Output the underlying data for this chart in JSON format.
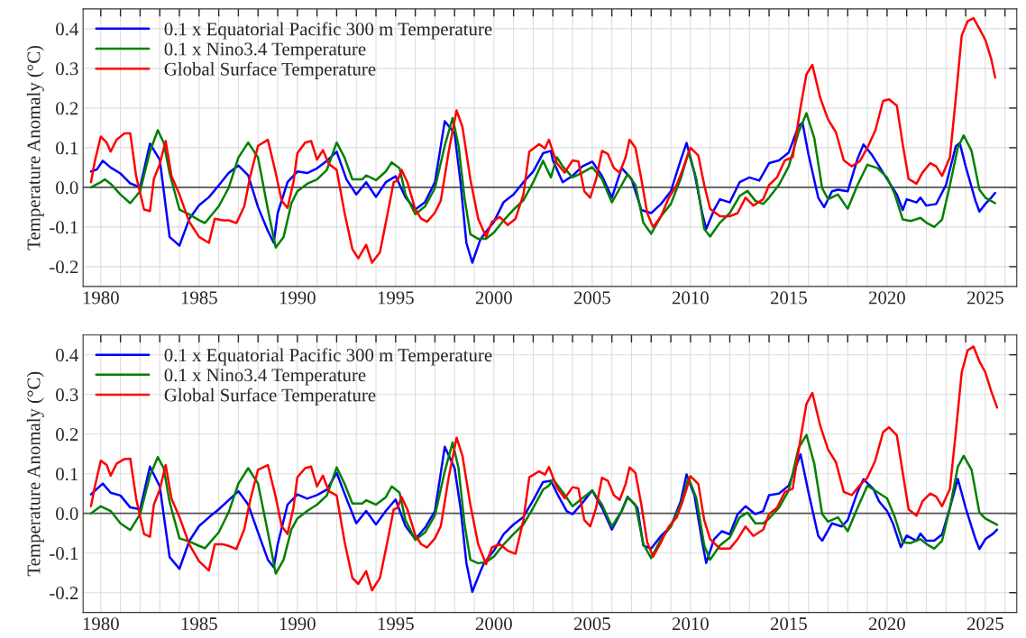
{
  "chart_data": [
    {
      "type": "line",
      "ylabel": "Temperature Anomaly (°C)",
      "xlim": [
        1979.1,
        2026.6
      ],
      "ylim": [
        -0.25,
        0.45
      ],
      "yticks": [
        -0.2,
        -0.1,
        {
          "value": 0,
          "label": "0.0"
        },
        0.1,
        0.2,
        0.3,
        0.4
      ],
      "xticks": [
        1980,
        {
          "value": 1981,
          "label": null
        },
        {
          "value": 1982,
          "label": null
        },
        {
          "value": 1983,
          "label": null
        },
        {
          "value": 1984,
          "label": null
        },
        1985,
        {
          "value": 1986,
          "label": null
        },
        {
          "value": 1987,
          "label": null
        },
        {
          "value": 1988,
          "label": null
        },
        {
          "value": 1989,
          "label": null
        },
        1990,
        {
          "value": 1991,
          "label": null
        },
        {
          "value": 1992,
          "label": null
        },
        {
          "value": 1993,
          "label": null
        },
        {
          "value": 1994,
          "label": null
        },
        1995,
        {
          "value": 1996,
          "label": null
        },
        {
          "value": 1997,
          "label": null
        },
        {
          "value": 1998,
          "label": null
        },
        {
          "value": 1999,
          "label": null
        },
        2000,
        {
          "value": 2001,
          "label": null
        },
        {
          "value": 2002,
          "label": null
        },
        {
          "value": 2003,
          "label": null
        },
        {
          "value": 2004,
          "label": null
        },
        2005,
        {
          "value": 2006,
          "label": null
        },
        {
          "value": 2007,
          "label": null
        },
        {
          "value": 2008,
          "label": null
        },
        {
          "value": 2009,
          "label": null
        },
        2010,
        {
          "value": 2011,
          "label": null
        },
        {
          "value": 2012,
          "label": null
        },
        {
          "value": 2013,
          "label": null
        },
        {
          "value": 2014,
          "label": null
        },
        2015,
        {
          "value": 2016,
          "label": null
        },
        {
          "value": 2017,
          "label": null
        },
        {
          "value": 2018,
          "label": null
        },
        {
          "value": 2019,
          "label": null
        },
        2020,
        {
          "value": 2021,
          "label": null
        },
        {
          "value": 2022,
          "label": null
        },
        {
          "value": 2023,
          "label": null
        },
        {
          "value": 2024,
          "label": null
        },
        2025,
        {
          "value": 2026,
          "label": null
        }
      ],
      "grid": true,
      "legend": "top left",
      "ref_lines": [
        {
          "axis": "y",
          "value": 0,
          "color": "#555555"
        }
      ],
      "series": [
        {
          "name": "0.1 x Equatorial Pacific 300 m Temperature",
          "color": "#0000ff",
          "x": [
            1979.5,
            1979.8,
            1980.1,
            1980.5,
            1981,
            1981.3,
            1981.5,
            1982,
            1982.5,
            1983,
            1983.5,
            1984,
            1984.5,
            1985,
            1985.5,
            1986,
            1986.5,
            1987,
            1987.5,
            1988,
            1988.5,
            1988.8,
            1989,
            1989.5,
            1990,
            1990.5,
            1991,
            1991.5,
            1992,
            1992.5,
            1993,
            1993.5,
            1994,
            1994.5,
            1995,
            1995.5,
            1996,
            1996.5,
            1997,
            1997.5,
            1998,
            1998.3,
            1998.6,
            1998.9,
            1999.3,
            1999.5,
            2000,
            2000.5,
            2001,
            2001.5,
            2002,
            2002.5,
            2002.9,
            2003,
            2003.5,
            2004,
            2004.5,
            2005,
            2005.5,
            2006,
            2006.5,
            2007,
            2007.5,
            2008,
            2008.5,
            2009,
            2009.5,
            2009.8,
            2010.2,
            2010.6,
            2010.8,
            2011.2,
            2011.5,
            2012,
            2012.5,
            2013,
            2013.5,
            2014,
            2014.5,
            2015,
            2015.5,
            2015.7,
            2016,
            2016.5,
            2016.8,
            2017.2,
            2017.5,
            2018,
            2018.5,
            2018.8,
            2019.2,
            2019.6,
            2020,
            2020.5,
            2020.8,
            2021,
            2021.5,
            2021.7,
            2022,
            2022.5,
            2023,
            2023.5,
            2023.7,
            2024,
            2024.5,
            2024.7,
            2025,
            2025.3,
            2025.5
          ],
          "values": [
            0.04,
            0.045,
            0.067,
            0.05,
            0.035,
            0.02,
            0.01,
            0.0,
            0.11,
            0.07,
            -0.125,
            -0.147,
            -0.08,
            -0.045,
            -0.025,
            0.005,
            0.036,
            0.055,
            0.03,
            -0.05,
            -0.11,
            -0.14,
            -0.065,
            0.013,
            0.04,
            0.036,
            0.048,
            0.067,
            0.09,
            0.02,
            -0.018,
            0.013,
            -0.024,
            0.013,
            0.028,
            -0.025,
            -0.056,
            -0.037,
            0.013,
            0.167,
            0.136,
            0.013,
            -0.14,
            -0.19,
            -0.133,
            -0.118,
            -0.087,
            -0.037,
            -0.018,
            0.013,
            0.04,
            0.086,
            0.092,
            0.068,
            0.013,
            0.029,
            0.053,
            0.065,
            0.029,
            -0.026,
            0.049,
            0.021,
            -0.057,
            -0.065,
            -0.042,
            -0.01,
            0.068,
            0.112,
            0.037,
            -0.065,
            -0.105,
            -0.057,
            -0.03,
            -0.038,
            0.013,
            0.025,
            0.017,
            0.061,
            0.068,
            0.088,
            0.155,
            0.163,
            0.084,
            -0.026,
            -0.05,
            -0.01,
            -0.006,
            -0.01,
            0.072,
            0.108,
            0.084,
            0.053,
            0.021,
            -0.018,
            -0.057,
            -0.03,
            -0.038,
            -0.026,
            -0.046,
            -0.042,
            0.006,
            0.104,
            0.112,
            0.053,
            -0.034,
            -0.061,
            -0.042,
            -0.026,
            -0.014
          ]
        },
        {
          "name": "0.1 x Nino3.4 Temperature",
          "color": "#008000",
          "x": [
            1979.5,
            1980,
            1980.2,
            1980.5,
            1981,
            1981.5,
            1982,
            1982.5,
            1982.9,
            1983.2,
            1983.5,
            1984,
            1984.5,
            1985,
            1985.3,
            1985.6,
            1986,
            1986.5,
            1987,
            1987.5,
            1988,
            1988.5,
            1988.9,
            1989.3,
            1989.7,
            1990,
            1990.5,
            1991,
            1991.5,
            1992,
            1992.4,
            1992.8,
            1993.3,
            1993.5,
            1994,
            1994.5,
            1994.8,
            1995.2,
            1995.5,
            1996,
            1996.5,
            1997,
            1997.5,
            1997.9,
            1998.2,
            1998.5,
            1998.8,
            1999.2,
            1999.6,
            2000,
            2000.5,
            2001,
            2001.5,
            2002,
            2002.5,
            2002.9,
            2003.2,
            2003.5,
            2004,
            2004.5,
            2005,
            2005.5,
            2006,
            2006.5,
            2006.8,
            2007.2,
            2007.6,
            2008,
            2008.5,
            2009,
            2009.5,
            2009.9,
            2010.3,
            2010.7,
            2011,
            2011.5,
            2012,
            2012.5,
            2012.9,
            2013.3,
            2013.7,
            2014,
            2014.5,
            2015,
            2015.5,
            2015.9,
            2016.3,
            2016.7,
            2017,
            2017.5,
            2018,
            2018.5,
            2019,
            2019.5,
            2020,
            2020.4,
            2020.8,
            2021.2,
            2021.7,
            2022,
            2022.4,
            2022.8,
            2023.2,
            2023.6,
            2023.9,
            2024.3,
            2024.7,
            2025,
            2025.5
          ],
          "values": [
            0.0,
            0.013,
            0.02,
            0.009,
            -0.018,
            -0.04,
            -0.01,
            0.09,
            0.144,
            0.113,
            0.036,
            -0.056,
            -0.068,
            -0.083,
            -0.09,
            -0.072,
            -0.048,
            -0.002,
            0.075,
            0.113,
            0.075,
            -0.056,
            -0.152,
            -0.125,
            -0.04,
            -0.01,
            0.009,
            0.02,
            0.044,
            0.113,
            0.075,
            0.02,
            0.02,
            0.03,
            0.018,
            0.04,
            0.063,
            0.048,
            -0.018,
            -0.068,
            -0.048,
            -0.002,
            0.105,
            0.175,
            0.105,
            -0.025,
            -0.118,
            -0.13,
            -0.13,
            -0.114,
            -0.083,
            -0.056,
            -0.033,
            0.013,
            0.067,
            0.025,
            0.076,
            0.053,
            0.025,
            0.037,
            0.051,
            0.021,
            -0.038,
            0.006,
            0.033,
            0.006,
            -0.089,
            -0.117,
            -0.073,
            -0.042,
            0.021,
            0.088,
            0.021,
            -0.105,
            -0.124,
            -0.089,
            -0.065,
            -0.022,
            -0.009,
            -0.034,
            -0.042,
            -0.026,
            0.006,
            0.053,
            0.139,
            0.187,
            0.124,
            -0.002,
            -0.03,
            -0.018,
            -0.054,
            0.006,
            0.057,
            0.049,
            0.025,
            -0.018,
            -0.081,
            -0.085,
            -0.077,
            -0.089,
            -0.1,
            -0.081,
            0.006,
            0.1,
            0.131,
            0.092,
            -0.006,
            -0.026,
            -0.04
          ]
        },
        {
          "name": "Global Surface Temperature",
          "color": "#ff0000",
          "x": [
            1979.5,
            1979.7,
            1980,
            1980.3,
            1980.5,
            1980.8,
            1981.2,
            1981.5,
            1981.8,
            1982.2,
            1982.5,
            1982.7,
            1983,
            1983.3,
            1983.6,
            1984,
            1984.5,
            1985,
            1985.5,
            1985.8,
            1986.2,
            1986.5,
            1986.9,
            1987.3,
            1987.6,
            1988,
            1988.5,
            1988.9,
            1989.2,
            1989.5,
            1989.8,
            1990,
            1990.4,
            1990.7,
            1991,
            1991.3,
            1991.6,
            1992,
            1992.4,
            1992.8,
            1993.1,
            1993.5,
            1993.8,
            1994.2,
            1994.6,
            1994.9,
            1995.1,
            1995.3,
            1995.6,
            1996,
            1996.3,
            1996.6,
            1997,
            1997.3,
            1997.7,
            1998.1,
            1998.4,
            1998.8,
            1999.2,
            1999.6,
            1999.9,
            2000.3,
            2000.7,
            2001.1,
            2001.5,
            2001.8,
            2002.3,
            2002.6,
            2002.8,
            2003.2,
            2003.6,
            2004,
            2004.3,
            2004.6,
            2004.9,
            2005.2,
            2005.5,
            2005.8,
            2006.1,
            2006.4,
            2006.7,
            2006.9,
            2007.2,
            2007.5,
            2007.8,
            2008.1,
            2008.5,
            2008.9,
            2009.3,
            2009.6,
            2010,
            2010.4,
            2010.7,
            2011,
            2011.5,
            2012,
            2012.4,
            2012.8,
            2013.2,
            2013.7,
            2014,
            2014.4,
            2014.8,
            2015.2,
            2015.6,
            2015.9,
            2016.2,
            2016.6,
            2017,
            2017.4,
            2017.8,
            2018.2,
            2018.6,
            2019,
            2019.4,
            2019.8,
            2020.1,
            2020.5,
            2020.8,
            2021.1,
            2021.5,
            2021.8,
            2022.2,
            2022.5,
            2022.8,
            2023.2,
            2023.5,
            2023.8,
            2024.1,
            2024.4,
            2024.7,
            2025,
            2025.3,
            2025.5
          ],
          "values": [
            0.013,
            0.067,
            0.128,
            0.113,
            0.09,
            0.12,
            0.136,
            0.136,
            0.028,
            -0.056,
            -0.06,
            0.021,
            0.059,
            0.117,
            0.028,
            -0.018,
            -0.087,
            -0.125,
            -0.14,
            -0.079,
            -0.083,
            -0.083,
            -0.09,
            -0.048,
            0.028,
            0.105,
            0.12,
            0.036,
            -0.033,
            -0.052,
            0.013,
            0.086,
            0.113,
            0.117,
            0.07,
            0.094,
            0.059,
            0.044,
            -0.064,
            -0.156,
            -0.179,
            -0.145,
            -0.19,
            -0.164,
            -0.064,
            0.013,
            0.017,
            0.044,
            0.013,
            -0.056,
            -0.079,
            -0.087,
            -0.064,
            -0.033,
            0.09,
            0.194,
            0.152,
            0.021,
            -0.079,
            -0.125,
            -0.087,
            -0.075,
            -0.095,
            -0.079,
            -0.018,
            0.09,
            0.109,
            0.098,
            0.12,
            0.061,
            0.037,
            0.068,
            0.065,
            -0.01,
            -0.026,
            0.021,
            0.092,
            0.084,
            0.049,
            0.037,
            0.076,
            0.12,
            0.1,
            0.021,
            -0.065,
            -0.1,
            -0.073,
            -0.026,
            0.006,
            0.045,
            0.1,
            0.08,
            0.006,
            -0.054,
            -0.073,
            -0.073,
            -0.065,
            -0.026,
            -0.046,
            -0.03,
            0.006,
            0.025,
            0.068,
            0.076,
            0.202,
            0.285,
            0.309,
            0.226,
            0.171,
            0.139,
            0.068,
            0.053,
            0.065,
            0.1,
            0.143,
            0.218,
            0.222,
            0.206,
            0.108,
            0.021,
            0.009,
            0.037,
            0.061,
            0.053,
            0.029,
            0.076,
            0.226,
            0.383,
            0.419,
            0.427,
            0.4,
            0.372,
            0.324,
            0.277
          ]
        }
      ]
    },
    {
      "type": "line",
      "ylabel": "Temperature Anomaly (°C)",
      "xlim": [
        1979.1,
        2026.6
      ],
      "ylim": [
        -0.25,
        0.45
      ],
      "yticks": [
        -0.2,
        -0.1,
        {
          "value": 0,
          "label": "0.0"
        },
        0.1,
        0.2,
        0.3,
        0.4
      ],
      "xticks": [
        1980,
        {
          "value": 1981,
          "label": null
        },
        {
          "value": 1982,
          "label": null
        },
        {
          "value": 1983,
          "label": null
        },
        {
          "value": 1984,
          "label": null
        },
        1985,
        {
          "value": 1986,
          "label": null
        },
        {
          "value": 1987,
          "label": null
        },
        {
          "value": 1988,
          "label": null
        },
        {
          "value": 1989,
          "label": null
        },
        1990,
        {
          "value": 1991,
          "label": null
        },
        {
          "value": 1992,
          "label": null
        },
        {
          "value": 1993,
          "label": null
        },
        {
          "value": 1994,
          "label": null
        },
        1995,
        {
          "value": 1996,
          "label": null
        },
        {
          "value": 1997,
          "label": null
        },
        {
          "value": 1998,
          "label": null
        },
        {
          "value": 1999,
          "label": null
        },
        2000,
        {
          "value": 2001,
          "label": null
        },
        {
          "value": 2002,
          "label": null
        },
        {
          "value": 2003,
          "label": null
        },
        {
          "value": 2004,
          "label": null
        },
        2005,
        {
          "value": 2006,
          "label": null
        },
        {
          "value": 2007,
          "label": null
        },
        {
          "value": 2008,
          "label": null
        },
        {
          "value": 2009,
          "label": null
        },
        2010,
        {
          "value": 2011,
          "label": null
        },
        {
          "value": 2012,
          "label": null
        },
        {
          "value": 2013,
          "label": null
        },
        {
          "value": 2014,
          "label": null
        },
        2015,
        {
          "value": 2016,
          "label": null
        },
        {
          "value": 2017,
          "label": null
        },
        {
          "value": 2018,
          "label": null
        },
        {
          "value": 2019,
          "label": null
        },
        2020,
        {
          "value": 2021,
          "label": null
        },
        {
          "value": 2022,
          "label": null
        },
        {
          "value": 2023,
          "label": null
        },
        {
          "value": 2024,
          "label": null
        },
        2025,
        {
          "value": 2026,
          "label": null
        }
      ],
      "grid": true,
      "legend": "top left",
      "ref_lines": [
        {
          "axis": "y",
          "value": 0,
          "color": "#555555"
        }
      ],
      "series": [
        {
          "name": "0.1 x Equatorial Pacific 300 m Temperature",
          "color": "#0000ff",
          "x": [
            1979.5,
            1980.1,
            1980.5,
            1981,
            1981.5,
            1982,
            1982.5,
            1983,
            1983.5,
            1984,
            1984.5,
            1985,
            1985.5,
            1986,
            1986.5,
            1987,
            1987.5,
            1988,
            1988.5,
            1988.8,
            1989,
            1989.5,
            1990,
            1990.5,
            1991,
            1991.5,
            1992,
            1992.5,
            1993,
            1993.5,
            1994,
            1994.5,
            1995,
            1995.5,
            1996,
            1996.5,
            1997,
            1997.5,
            1998,
            1998.3,
            1998.6,
            1998.9,
            1999.3,
            1999.5,
            2000,
            2000.5,
            2001,
            2001.5,
            2002,
            2002.5,
            2002.9,
            2003.3,
            2003.7,
            2004,
            2004.5,
            2005,
            2005.5,
            2006,
            2006.5,
            2006.8,
            2007.3,
            2007.6,
            2008,
            2008.5,
            2009,
            2009.5,
            2009.8,
            2010.2,
            2010.6,
            2010.8,
            2011.2,
            2011.6,
            2012,
            2012.4,
            2012.8,
            2013.3,
            2013.7,
            2014,
            2014.5,
            2015,
            2015.3,
            2015.6,
            2016,
            2016.5,
            2016.7,
            2017.2,
            2017.7,
            2018,
            2018.5,
            2018.8,
            2019.3,
            2019.6,
            2020,
            2020.3,
            2020.7,
            2021,
            2021.5,
            2021.7,
            2022,
            2022.4,
            2022.8,
            2023.2,
            2023.6,
            2024,
            2024.5,
            2024.7,
            2025,
            2025.4,
            2025.6
          ],
          "values": [
            0.048,
            0.075,
            0.052,
            0.045,
            0.015,
            0.01,
            0.118,
            0.068,
            -0.11,
            -0.14,
            -0.07,
            -0.032,
            -0.01,
            0.01,
            0.033,
            0.056,
            0.022,
            -0.048,
            -0.117,
            -0.136,
            -0.078,
            0.022,
            0.048,
            0.037,
            0.046,
            0.06,
            0.102,
            0.037,
            -0.025,
            0.006,
            -0.028,
            0.006,
            0.035,
            -0.032,
            -0.065,
            -0.036,
            0.006,
            0.168,
            0.114,
            0.014,
            -0.125,
            -0.198,
            -0.148,
            -0.125,
            -0.094,
            -0.052,
            -0.028,
            -0.009,
            0.033,
            0.079,
            0.082,
            0.042,
            0.006,
            -0.002,
            0.026,
            0.058,
            0.014,
            -0.041,
            0.006,
            0.042,
            0.014,
            -0.081,
            -0.089,
            -0.057,
            -0.033,
            0.03,
            0.098,
            0.046,
            -0.073,
            -0.125,
            -0.065,
            -0.045,
            -0.053,
            -0.002,
            0.018,
            -0.002,
            0.006,
            0.046,
            0.05,
            0.07,
            0.11,
            0.149,
            0.054,
            -0.057,
            -0.069,
            -0.025,
            -0.033,
            -0.017,
            0.054,
            0.086,
            0.062,
            0.03,
            0.006,
            -0.025,
            -0.085,
            -0.056,
            -0.069,
            -0.051,
            -0.069,
            -0.069,
            -0.053,
            0.014,
            0.087,
            0.014,
            -0.065,
            -0.09,
            -0.065,
            -0.051,
            -0.041
          ]
        },
        {
          "name": "0.1 x Nino3.4 Temperature",
          "color": "#008000",
          "x": [
            1979.5,
            1980,
            1980.5,
            1981,
            1981.5,
            1982,
            1982.5,
            1982.9,
            1983.2,
            1983.5,
            1984,
            1984.5,
            1985,
            1985.3,
            1985.6,
            1986,
            1986.5,
            1987,
            1987.5,
            1988,
            1988.5,
            1988.9,
            1989.3,
            1989.7,
            1990,
            1990.5,
            1991,
            1991.5,
            1992,
            1992.4,
            1992.8,
            1993.3,
            1993.5,
            1994,
            1994.5,
            1994.8,
            1995.2,
            1995.5,
            1996,
            1996.5,
            1997,
            1997.5,
            1997.9,
            1998.2,
            1998.5,
            1998.8,
            1999.2,
            1999.6,
            2000,
            2000.5,
            2001,
            2001.5,
            2002,
            2002.5,
            2002.8,
            2003,
            2003.5,
            2004,
            2004.5,
            2005,
            2005.5,
            2006,
            2006.5,
            2006.8,
            2007.2,
            2007.6,
            2008,
            2008.5,
            2009,
            2009.5,
            2009.9,
            2010.3,
            2010.7,
            2011,
            2011.5,
            2012,
            2012.5,
            2012.9,
            2013.3,
            2013.7,
            2014,
            2014.5,
            2015,
            2015.5,
            2015.9,
            2016.3,
            2016.7,
            2017,
            2017.5,
            2018,
            2018.5,
            2019,
            2019.5,
            2020,
            2020.4,
            2020.8,
            2021.2,
            2021.7,
            2022,
            2022.4,
            2022.8,
            2023.2,
            2023.6,
            2023.9,
            2024.3,
            2024.7,
            2025,
            2025.6
          ],
          "values": [
            0.0,
            0.018,
            0.006,
            -0.025,
            -0.042,
            -0.002,
            0.095,
            0.142,
            0.114,
            0.029,
            -0.063,
            -0.071,
            -0.082,
            -0.088,
            -0.071,
            -0.048,
            0.002,
            0.075,
            0.114,
            0.075,
            -0.048,
            -0.152,
            -0.117,
            -0.04,
            -0.013,
            0.006,
            0.022,
            0.045,
            0.116,
            0.075,
            0.025,
            0.025,
            0.033,
            0.022,
            0.041,
            0.068,
            0.052,
            -0.017,
            -0.067,
            -0.048,
            -0.005,
            0.106,
            0.179,
            0.114,
            -0.025,
            -0.117,
            -0.126,
            -0.123,
            -0.109,
            -0.078,
            -0.052,
            -0.028,
            0.014,
            0.06,
            0.07,
            0.086,
            0.054,
            0.018,
            0.038,
            0.058,
            0.022,
            -0.033,
            0.006,
            0.04,
            0.022,
            -0.077,
            -0.113,
            -0.065,
            -0.033,
            0.022,
            0.09,
            0.038,
            -0.081,
            -0.117,
            -0.081,
            -0.061,
            -0.01,
            0.002,
            -0.025,
            -0.025,
            -0.013,
            0.014,
            0.058,
            0.165,
            0.198,
            0.125,
            -0.002,
            -0.021,
            -0.01,
            -0.045,
            0.014,
            0.07,
            0.054,
            0.038,
            -0.01,
            -0.073,
            -0.075,
            -0.065,
            -0.077,
            -0.089,
            -0.069,
            0.014,
            0.117,
            0.145,
            0.11,
            0.002,
            -0.013,
            -0.029
          ]
        },
        {
          "name": "Global Surface Temperature",
          "color": "#ff0000",
          "x": [
            1979.5,
            1979.7,
            1980,
            1980.3,
            1980.5,
            1980.8,
            1981.2,
            1981.5,
            1981.8,
            1982.2,
            1982.5,
            1982.7,
            1983,
            1983.3,
            1983.6,
            1984,
            1984.5,
            1985,
            1985.5,
            1985.8,
            1986.2,
            1986.5,
            1986.9,
            1987.3,
            1987.6,
            1988,
            1988.5,
            1988.9,
            1989.2,
            1989.5,
            1989.8,
            1990,
            1990.4,
            1990.7,
            1991,
            1991.3,
            1991.6,
            1992,
            1992.4,
            1992.8,
            1993.1,
            1993.5,
            1993.8,
            1994.2,
            1994.6,
            1994.9,
            1995.1,
            1995.3,
            1995.6,
            1996,
            1996.3,
            1996.6,
            1997,
            1997.3,
            1997.7,
            1998.1,
            1998.4,
            1998.8,
            1999.2,
            1999.6,
            1999.9,
            2000.3,
            2000.7,
            2001.1,
            2001.5,
            2001.8,
            2002.3,
            2002.6,
            2002.8,
            2003.2,
            2003.6,
            2004,
            2004.3,
            2004.6,
            2004.9,
            2005.2,
            2005.5,
            2005.8,
            2006.1,
            2006.4,
            2006.7,
            2006.9,
            2007.2,
            2007.5,
            2007.8,
            2008.1,
            2008.5,
            2008.9,
            2009.3,
            2009.6,
            2010,
            2010.4,
            2010.7,
            2011,
            2011.5,
            2012,
            2012.4,
            2012.8,
            2013.2,
            2013.7,
            2014,
            2014.4,
            2014.8,
            2015.2,
            2015.6,
            2015.9,
            2016.2,
            2016.6,
            2017,
            2017.4,
            2017.8,
            2018.2,
            2018.6,
            2019,
            2019.4,
            2019.8,
            2020.1,
            2020.5,
            2020.8,
            2021.1,
            2021.5,
            2021.8,
            2022.2,
            2022.5,
            2022.8,
            2023.2,
            2023.5,
            2023.8,
            2024.1,
            2024.4,
            2024.7,
            2025,
            2025.3,
            2025.6
          ],
          "values": [
            0.018,
            0.068,
            0.133,
            0.122,
            0.095,
            0.125,
            0.137,
            0.138,
            0.037,
            -0.052,
            -0.059,
            0.022,
            0.06,
            0.122,
            0.037,
            -0.009,
            -0.078,
            -0.121,
            -0.144,
            -0.078,
            -0.078,
            -0.082,
            -0.09,
            -0.04,
            0.033,
            0.11,
            0.122,
            0.041,
            -0.032,
            -0.052,
            0.014,
            0.091,
            0.114,
            0.118,
            0.068,
            0.095,
            0.056,
            0.045,
            -0.071,
            -0.163,
            -0.178,
            -0.146,
            -0.194,
            -0.163,
            -0.067,
            0.01,
            0.014,
            0.041,
            0.01,
            -0.055,
            -0.078,
            -0.086,
            -0.063,
            -0.032,
            0.091,
            0.191,
            0.145,
            0.022,
            -0.078,
            -0.128,
            -0.086,
            -0.078,
            -0.094,
            -0.102,
            -0.017,
            0.091,
            0.106,
            0.098,
            0.117,
            0.066,
            0.038,
            0.066,
            0.063,
            -0.017,
            -0.033,
            0.014,
            0.09,
            0.082,
            0.046,
            0.034,
            0.074,
            0.116,
            0.102,
            0.022,
            -0.073,
            -0.109,
            -0.073,
            -0.033,
            -0.01,
            0.03,
            0.094,
            0.074,
            -0.017,
            -0.065,
            -0.089,
            -0.089,
            -0.065,
            -0.033,
            -0.057,
            -0.041,
            -0.002,
            0.014,
            0.054,
            0.062,
            0.189,
            0.276,
            0.304,
            0.221,
            0.161,
            0.129,
            0.054,
            0.046,
            0.07,
            0.09,
            0.133,
            0.205,
            0.217,
            0.197,
            0.102,
            0.01,
            -0.006,
            0.03,
            0.05,
            0.042,
            0.018,
            0.062,
            0.205,
            0.356,
            0.411,
            0.421,
            0.383,
            0.356,
            0.308,
            0.267
          ]
        }
      ]
    }
  ]
}
